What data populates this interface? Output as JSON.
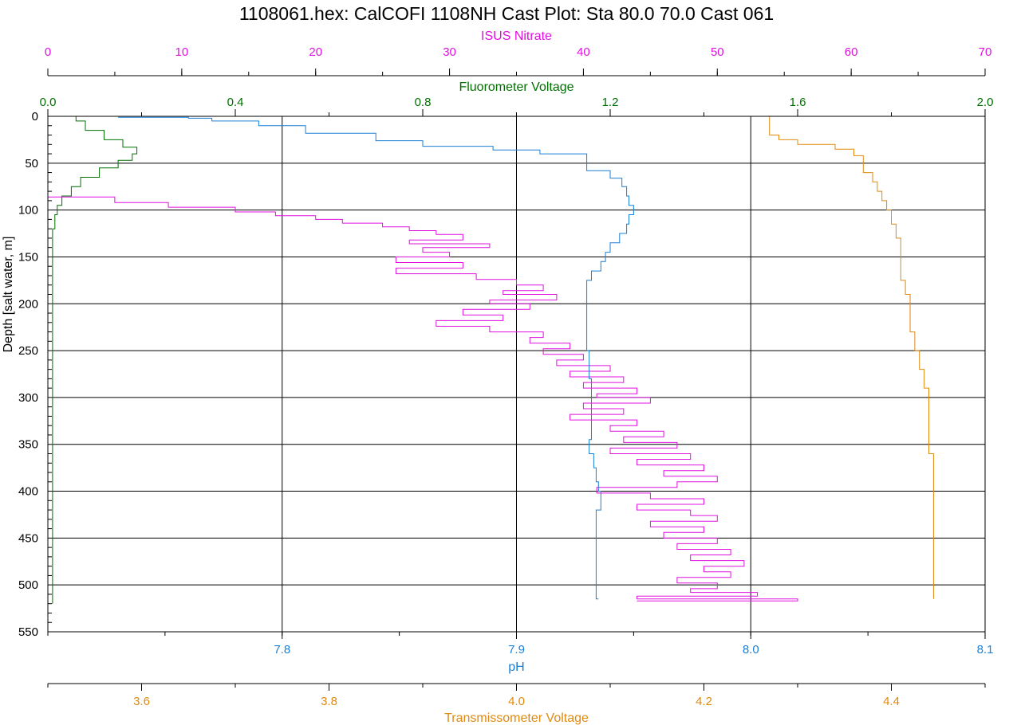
{
  "chart_data": {
    "type": "line",
    "title": "1108061.hex: CalCOFI 1108NH Cast Plot: Sta 80.0 70.0 Cast 061",
    "y_axis": {
      "label": "Depth [salt water, m]",
      "range": [
        0,
        550
      ],
      "ticks": [
        "0",
        "50",
        "100",
        "150",
        "200",
        "250",
        "300",
        "350",
        "400",
        "450",
        "500",
        "550"
      ],
      "reversed": true
    },
    "x_axes": [
      {
        "id": "nitrate",
        "label": "ISUS Nitrate",
        "position": "top",
        "range": [
          0,
          70
        ],
        "color": "#e010e0",
        "ticks": [
          "0",
          "10",
          "20",
          "30",
          "40",
          "50",
          "60",
          "70"
        ]
      },
      {
        "id": "fluor",
        "label": "Fluorometer Voltage",
        "position": "top",
        "range": [
          0,
          2
        ],
        "color": "#007000",
        "ticks": [
          "0.0",
          "0.4",
          "0.8",
          "1.2",
          "1.6",
          "2.0"
        ]
      },
      {
        "id": "ph",
        "label": "pH",
        "position": "bottom",
        "range": [
          7.7,
          8.1
        ],
        "color": "#1a7fd6",
        "ticks": [
          "7.8",
          "7.9",
          "8.0",
          "8.1"
        ]
      },
      {
        "id": "trans",
        "label": "Transmissometer Voltage",
        "position": "bottom",
        "range": [
          3.5,
          4.5
        ],
        "color": "#e08a10",
        "ticks": [
          "3.6",
          "3.8",
          "4.0",
          "4.2",
          "4.4"
        ]
      }
    ],
    "grid": true,
    "series": [
      {
        "axis": "fluor",
        "color": "#007000",
        "points": [
          [
            0.06,
            0
          ],
          [
            0.08,
            5
          ],
          [
            0.12,
            15
          ],
          [
            0.16,
            25
          ],
          [
            0.19,
            33
          ],
          [
            0.18,
            40
          ],
          [
            0.15,
            47
          ],
          [
            0.11,
            55
          ],
          [
            0.07,
            65
          ],
          [
            0.05,
            75
          ],
          [
            0.03,
            85
          ],
          [
            0.02,
            95
          ],
          [
            0.015,
            105
          ],
          [
            0.01,
            120
          ],
          [
            0.01,
            200
          ],
          [
            0.01,
            350
          ],
          [
            0.01,
            520
          ]
        ]
      },
      {
        "axis": "nitrate",
        "color": "#e010e0",
        "points": [
          [
            0,
            80
          ],
          [
            5,
            86
          ],
          [
            9,
            92
          ],
          [
            14,
            97
          ],
          [
            17,
            102
          ],
          [
            20,
            106
          ],
          [
            22,
            110
          ],
          [
            25,
            114
          ],
          [
            27,
            118
          ],
          [
            29,
            122
          ],
          [
            31,
            126
          ],
          [
            27,
            132
          ],
          [
            33,
            136
          ],
          [
            28,
            140
          ],
          [
            30,
            145
          ],
          [
            26,
            150
          ],
          [
            31,
            156
          ],
          [
            26,
            162
          ],
          [
            32,
            168
          ],
          [
            35,
            174
          ],
          [
            37,
            180
          ],
          [
            34,
            186
          ],
          [
            38,
            190
          ],
          [
            33,
            196
          ],
          [
            36,
            200
          ],
          [
            31,
            206
          ],
          [
            34,
            212
          ],
          [
            29,
            218
          ],
          [
            33,
            224
          ],
          [
            37,
            230
          ],
          [
            36,
            236
          ],
          [
            39,
            242
          ],
          [
            37,
            248
          ],
          [
            40,
            254
          ],
          [
            38,
            260
          ],
          [
            42,
            266
          ],
          [
            39,
            272
          ],
          [
            43,
            278
          ],
          [
            40,
            284
          ],
          [
            44,
            290
          ],
          [
            41,
            296
          ],
          [
            45,
            300
          ],
          [
            40,
            306
          ],
          [
            43,
            312
          ],
          [
            39,
            318
          ],
          [
            44,
            324
          ],
          [
            42,
            330
          ],
          [
            46,
            336
          ],
          [
            43,
            342
          ],
          [
            47,
            348
          ],
          [
            42,
            354
          ],
          [
            48,
            360
          ],
          [
            44,
            366
          ],
          [
            49,
            372
          ],
          [
            46,
            378
          ],
          [
            50,
            384
          ],
          [
            47,
            390
          ],
          [
            41,
            396
          ],
          [
            45,
            402
          ],
          [
            49,
            408
          ],
          [
            44,
            414
          ],
          [
            48,
            420
          ],
          [
            50,
            426
          ],
          [
            45,
            432
          ],
          [
            49,
            438
          ],
          [
            46,
            444
          ],
          [
            50,
            450
          ],
          [
            47,
            456
          ],
          [
            51,
            462
          ],
          [
            48,
            468
          ],
          [
            52,
            474
          ],
          [
            49,
            480
          ],
          [
            51,
            486
          ],
          [
            47,
            492
          ],
          [
            50,
            498
          ],
          [
            48,
            504
          ],
          [
            53,
            508
          ],
          [
            44,
            512
          ],
          [
            56,
            515
          ],
          [
            44,
            517
          ]
        ]
      },
      {
        "axis": "ph",
        "color": "#1a7fd6",
        "points": [
          [
            7.73,
            1
          ],
          [
            7.76,
            1
          ],
          [
            7.77,
            2
          ],
          [
            7.79,
            5
          ],
          [
            7.81,
            10
          ],
          [
            7.84,
            18
          ],
          [
            7.86,
            26
          ],
          [
            7.89,
            32
          ],
          [
            7.91,
            36
          ],
          [
            7.93,
            40
          ],
          [
            7.93,
            50
          ],
          [
            7.94,
            58
          ],
          [
            7.945,
            66
          ],
          [
            7.947,
            75
          ],
          [
            7.948,
            85
          ],
          [
            7.95,
            95
          ],
          [
            7.948,
            105
          ],
          [
            7.947,
            115
          ],
          [
            7.944,
            125
          ],
          [
            7.94,
            135
          ],
          [
            7.938,
            145
          ],
          [
            7.936,
            155
          ],
          [
            7.932,
            165
          ],
          [
            7.93,
            175
          ],
          [
            7.93,
            190
          ],
          [
            7.93,
            220
          ],
          [
            7.931,
            250
          ],
          [
            7.932,
            280
          ],
          [
            7.932,
            300
          ],
          [
            7.932,
            330
          ],
          [
            7.931,
            345
          ],
          [
            7.933,
            360
          ],
          [
            7.934,
            375
          ],
          [
            7.935,
            390
          ],
          [
            7.936,
            400
          ],
          [
            7.934,
            420
          ],
          [
            7.934,
            450
          ],
          [
            7.934,
            480
          ],
          [
            7.934,
            500
          ],
          [
            7.935,
            515
          ]
        ]
      },
      {
        "axis": "trans",
        "color": "#e08a10",
        "points": [
          [
            4.27,
            0
          ],
          [
            4.27,
            5
          ],
          [
            4.27,
            12
          ],
          [
            4.28,
            20
          ],
          [
            4.3,
            25
          ],
          [
            4.34,
            30
          ],
          [
            4.36,
            35
          ],
          [
            4.37,
            42
          ],
          [
            4.37,
            50
          ],
          [
            4.38,
            60
          ],
          [
            4.385,
            70
          ],
          [
            4.39,
            80
          ],
          [
            4.395,
            90
          ],
          [
            4.4,
            100
          ],
          [
            4.405,
            115
          ],
          [
            4.41,
            130
          ],
          [
            4.41,
            145
          ],
          [
            4.41,
            160
          ],
          [
            4.415,
            175
          ],
          [
            4.42,
            190
          ],
          [
            4.42,
            210
          ],
          [
            4.425,
            230
          ],
          [
            4.43,
            250
          ],
          [
            4.435,
            270
          ],
          [
            4.44,
            290
          ],
          [
            4.44,
            300
          ],
          [
            4.44,
            320
          ],
          [
            4.44,
            340
          ],
          [
            4.445,
            360
          ],
          [
            4.445,
            380
          ],
          [
            4.445,
            400
          ],
          [
            4.445,
            420
          ],
          [
            4.445,
            440
          ],
          [
            4.445,
            460
          ],
          [
            4.445,
            480
          ],
          [
            4.445,
            500
          ],
          [
            4.445,
            515
          ]
        ]
      }
    ]
  }
}
